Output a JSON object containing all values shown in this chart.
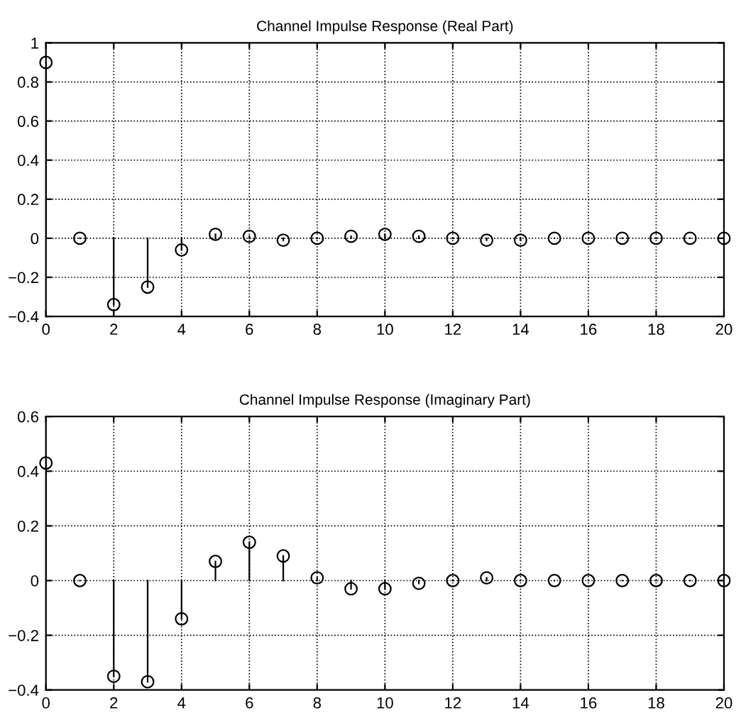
{
  "chart_data": [
    {
      "type": "lollipop",
      "title": "Channel Impulse Response (Real Part)",
      "x": [
        0,
        1,
        2,
        3,
        4,
        5,
        6,
        7,
        8,
        9,
        10,
        11,
        12,
        13,
        14,
        15,
        16,
        17,
        18,
        19,
        20
      ],
      "series": [
        {
          "color": "#000000",
          "values": [
            0.9,
            0,
            -0.34,
            -0.25,
            -0.06,
            0.02,
            0.01,
            -0.01,
            0,
            0.01,
            0.02,
            0.01,
            0,
            -0.01,
            -0.01,
            0,
            0,
            0,
            0,
            0,
            0
          ]
        }
      ],
      "xlim": [
        0,
        20
      ],
      "xticks": [
        0,
        2,
        4,
        6,
        8,
        10,
        12,
        14,
        16,
        18,
        20
      ],
      "ylim": [
        -0.4,
        1
      ],
      "yticks": [
        -0.4,
        -0.2,
        0,
        0.2,
        0.4,
        0.6,
        0.8,
        1
      ],
      "grid": true,
      "marker": "circle",
      "line_style": "solid"
    },
    {
      "type": "lollipop",
      "title": "Channel Impulse Response (Imaginary Part)",
      "x": [
        0,
        1,
        2,
        3,
        4,
        5,
        6,
        7,
        8,
        9,
        10,
        11,
        12,
        13,
        14,
        15,
        16,
        17,
        18,
        19,
        20
      ],
      "series": [
        {
          "color": "#000000",
          "values": [
            0.43,
            0,
            -0.35,
            -0.37,
            -0.14,
            0.07,
            0.14,
            0.09,
            0.01,
            -0.03,
            -0.03,
            -0.01,
            0,
            0.01,
            0,
            0,
            0,
            0,
            0,
            0,
            0
          ]
        }
      ],
      "xlim": [
        0,
        20
      ],
      "xticks": [
        0,
        2,
        4,
        6,
        8,
        10,
        12,
        14,
        16,
        18,
        20
      ],
      "ylim": [
        -0.4,
        0.6
      ],
      "yticks": [
        -0.4,
        -0.2,
        0,
        0.2,
        0.4,
        0.6
      ],
      "grid": true,
      "marker": "circle",
      "line_style": "solid"
    }
  ]
}
